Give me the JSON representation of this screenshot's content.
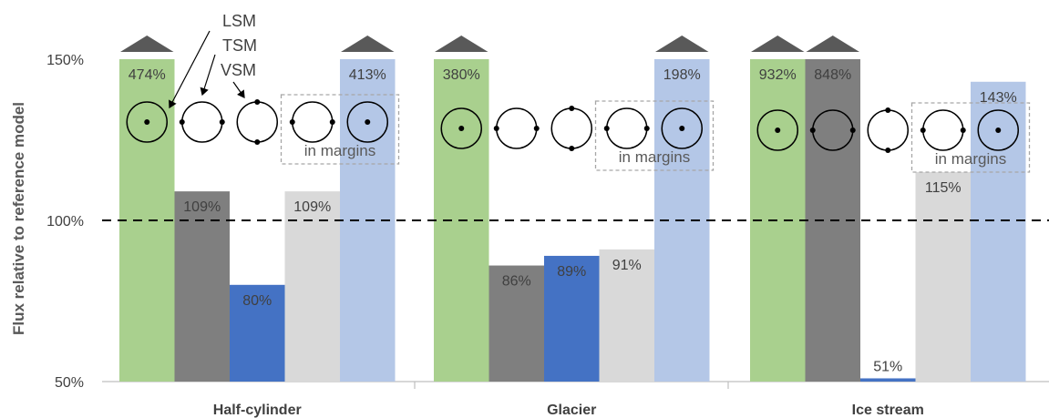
{
  "chart_data": {
    "type": "bar",
    "ylabel": "Flux relative to reference model",
    "y_ticks": [
      "50%",
      "100%",
      "150%"
    ],
    "ylim": [
      50,
      150
    ],
    "reference_line": 100,
    "y_scale": "linear, bars clipped at 150% with arrow caps",
    "groups": [
      "Half-cylinder",
      "Glacier",
      "Ice stream"
    ],
    "series_colors": [
      "#a9d08e",
      "#7f7f7f",
      "#4472c4",
      "#d9d9d9",
      "#b4c7e7"
    ],
    "bars": [
      [
        {
          "value": 474,
          "label": "474%",
          "color": "#a9d08e"
        },
        {
          "value": 109,
          "label": "109%",
          "color": "#7f7f7f"
        },
        {
          "value": 80,
          "label": "80%",
          "color": "#4472c4"
        },
        {
          "value": 109,
          "label": "109%",
          "color": "#d9d9d9"
        },
        {
          "value": 413,
          "label": "413%",
          "color": "#b4c7e7"
        }
      ],
      [
        {
          "value": 380,
          "label": "380%",
          "color": "#a9d08e"
        },
        {
          "value": 86,
          "label": "86%",
          "color": "#7f7f7f"
        },
        {
          "value": 89,
          "label": "89%",
          "color": "#4472c4"
        },
        {
          "value": 91,
          "label": "91%",
          "color": "#d9d9d9"
        },
        {
          "value": 198,
          "label": "198%",
          "color": "#b4c7e7"
        }
      ],
      [
        {
          "value": 932,
          "label": "932%",
          "color": "#a9d08e"
        },
        {
          "value": 848,
          "label": "848%",
          "color": "#7f7f7f"
        },
        {
          "value": 51,
          "label": "51%",
          "color": "#4472c4"
        },
        {
          "value": 115,
          "label": "115%",
          "color": "#d9d9d9"
        },
        {
          "value": 143,
          "label": "143%",
          "color": "#b4c7e7"
        }
      ]
    ],
    "bar_value_colors": [
      "#404040",
      "#404040",
      "#404040",
      "#404040",
      "#404040"
    ],
    "sampling_legend": [
      "LSM",
      "TSM",
      "VSM"
    ],
    "margins_note": "in margins",
    "sampling_icons": [
      "center-dot",
      "side-dots",
      "top-bottom-dots",
      "side-dots",
      "center-dot"
    ]
  }
}
